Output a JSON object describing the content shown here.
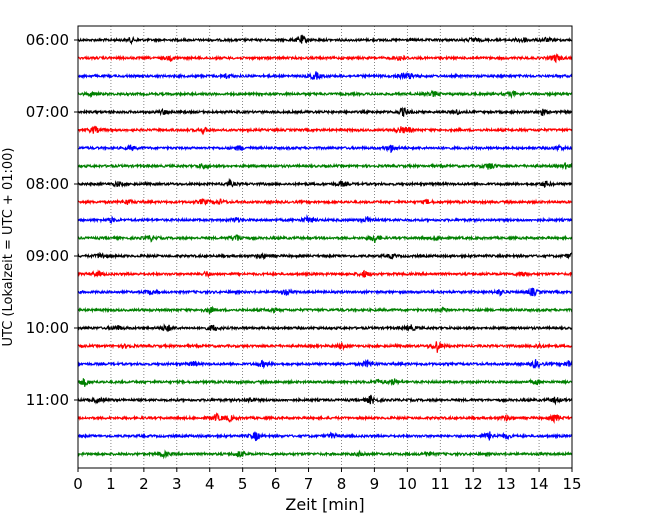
{
  "chart_data": {
    "type": "line",
    "title": "",
    "xlabel": "Zeit  [min]",
    "ylabel": "UTC (Lokalzeit = UTC + 01:00)",
    "xlim": [
      0,
      15
    ],
    "x_ticks": [
      "0",
      "1",
      "2",
      "3",
      "4",
      "5",
      "6",
      "7",
      "8",
      "9",
      "10",
      "11",
      "12",
      "13",
      "14",
      "15"
    ],
    "y_ticks": [
      "06:00",
      "07:00",
      "08:00",
      "09:00",
      "10:00",
      "11:00"
    ],
    "grid": "vertical-dotted",
    "trace_interval_minutes": 15,
    "trace_colors": [
      "#000000",
      "#ff0000",
      "#0000ff",
      "#008000"
    ],
    "series": [
      {
        "start": "06:00",
        "color": "#000000",
        "events": [
          [
            1.6,
            0.5
          ],
          [
            6.8,
            0.9
          ],
          [
            12.0,
            0.5
          ],
          [
            13.5,
            0.6
          ],
          [
            14.2,
            0.4
          ]
        ]
      },
      {
        "start": "06:15",
        "color": "#ff0000",
        "events": [
          [
            2.8,
            0.4
          ],
          [
            9.8,
            0.6
          ],
          [
            14.5,
            0.8
          ]
        ]
      },
      {
        "start": "06:30",
        "color": "#0000ff",
        "events": [
          [
            4.5,
            0.5
          ],
          [
            7.2,
            0.9
          ],
          [
            9.8,
            0.6
          ],
          [
            10.1,
            0.5
          ]
        ]
      },
      {
        "start": "06:45",
        "color": "#008000",
        "events": [
          [
            0.4,
            0.4
          ],
          [
            10.8,
            0.6
          ],
          [
            13.2,
            0.5
          ]
        ]
      },
      {
        "start": "07:00",
        "color": "#000000",
        "events": [
          [
            2.6,
            0.5
          ],
          [
            9.9,
            0.9
          ],
          [
            11.5,
            0.4
          ],
          [
            14.1,
            0.6
          ]
        ]
      },
      {
        "start": "07:15",
        "color": "#ff0000",
        "events": [
          [
            0.5,
            0.8
          ],
          [
            3.8,
            0.5
          ],
          [
            9.8,
            0.5
          ],
          [
            10.0,
            0.6
          ]
        ]
      },
      {
        "start": "07:30",
        "color": "#0000ff",
        "events": [
          [
            1.6,
            0.5
          ],
          [
            4.9,
            0.5
          ],
          [
            9.5,
            0.8
          ],
          [
            14.6,
            0.5
          ]
        ]
      },
      {
        "start": "07:45",
        "color": "#008000",
        "events": [
          [
            3.8,
            0.6
          ],
          [
            12.5,
            0.8
          ],
          [
            14.8,
            0.5
          ]
        ]
      },
      {
        "start": "08:00",
        "color": "#000000",
        "events": [
          [
            1.2,
            0.5
          ],
          [
            4.6,
            0.6
          ],
          [
            8.0,
            0.5
          ],
          [
            14.2,
            0.6
          ]
        ]
      },
      {
        "start": "08:15",
        "color": "#ff0000",
        "events": [
          [
            1.5,
            0.5
          ],
          [
            3.8,
            0.6
          ],
          [
            4.3,
            0.5
          ],
          [
            10.6,
            0.4
          ]
        ]
      },
      {
        "start": "08:30",
        "color": "#0000ff",
        "events": [
          [
            1.0,
            0.5
          ],
          [
            4.8,
            0.5
          ],
          [
            7.0,
            0.8
          ],
          [
            8.8,
            0.6
          ]
        ]
      },
      {
        "start": "08:45",
        "color": "#008000",
        "events": [
          [
            2.2,
            0.6
          ],
          [
            4.8,
            0.8
          ],
          [
            9.0,
            0.9
          ],
          [
            10.9,
            0.5
          ]
        ]
      },
      {
        "start": "09:00",
        "color": "#000000",
        "events": [
          [
            0.7,
            0.6
          ],
          [
            5.6,
            0.5
          ],
          [
            9.5,
            0.4
          ],
          [
            15.0,
            0.7
          ]
        ]
      },
      {
        "start": "09:15",
        "color": "#ff0000",
        "events": [
          [
            0.6,
            0.5
          ],
          [
            3.9,
            0.5
          ],
          [
            8.7,
            0.7
          ],
          [
            13.5,
            0.6
          ]
        ]
      },
      {
        "start": "09:30",
        "color": "#0000ff",
        "events": [
          [
            2.2,
            0.5
          ],
          [
            6.3,
            0.5
          ],
          [
            12.8,
            0.6
          ],
          [
            13.8,
            0.8
          ]
        ]
      },
      {
        "start": "09:45",
        "color": "#008000",
        "events": [
          [
            4.0,
            0.6
          ],
          [
            5.9,
            0.5
          ],
          [
            11.1,
            0.4
          ]
        ]
      },
      {
        "start": "10:00",
        "color": "#000000",
        "events": [
          [
            1.2,
            0.5
          ],
          [
            2.7,
            0.8
          ],
          [
            4.1,
            0.7
          ],
          [
            10.1,
            0.6
          ]
        ]
      },
      {
        "start": "10:15",
        "color": "#ff0000",
        "events": [
          [
            1.5,
            0.4
          ],
          [
            8.0,
            0.6
          ],
          [
            10.9,
            1.3
          ],
          [
            14.0,
            0.5
          ]
        ]
      },
      {
        "start": "10:30",
        "color": "#0000ff",
        "events": [
          [
            3.5,
            0.5
          ],
          [
            5.6,
            0.6
          ],
          [
            8.8,
            0.7
          ],
          [
            13.9,
            0.8
          ],
          [
            14.9,
            0.6
          ]
        ]
      },
      {
        "start": "10:45",
        "color": "#008000",
        "events": [
          [
            0.2,
            0.8
          ],
          [
            9.1,
            0.5
          ],
          [
            9.6,
            0.6
          ],
          [
            13.9,
            0.5
          ]
        ]
      },
      {
        "start": "11:00",
        "color": "#000000",
        "events": [
          [
            0.6,
            0.5
          ],
          [
            5.2,
            0.5
          ],
          [
            8.9,
            0.9
          ],
          [
            14.5,
            0.6
          ]
        ]
      },
      {
        "start": "11:15",
        "color": "#ff0000",
        "events": [
          [
            4.2,
            0.8
          ],
          [
            4.6,
            0.6
          ],
          [
            13.0,
            0.5
          ],
          [
            14.5,
            0.8
          ]
        ]
      },
      {
        "start": "11:30",
        "color": "#0000ff",
        "events": [
          [
            5.4,
            0.9
          ],
          [
            7.7,
            0.5
          ],
          [
            12.5,
            0.8
          ],
          [
            13.0,
            0.5
          ]
        ]
      },
      {
        "start": "11:45",
        "color": "#008000",
        "events": [
          [
            2.6,
            0.6
          ],
          [
            4.9,
            0.7
          ],
          [
            8.6,
            0.5
          ],
          [
            10.6,
            0.4
          ]
        ]
      }
    ]
  }
}
